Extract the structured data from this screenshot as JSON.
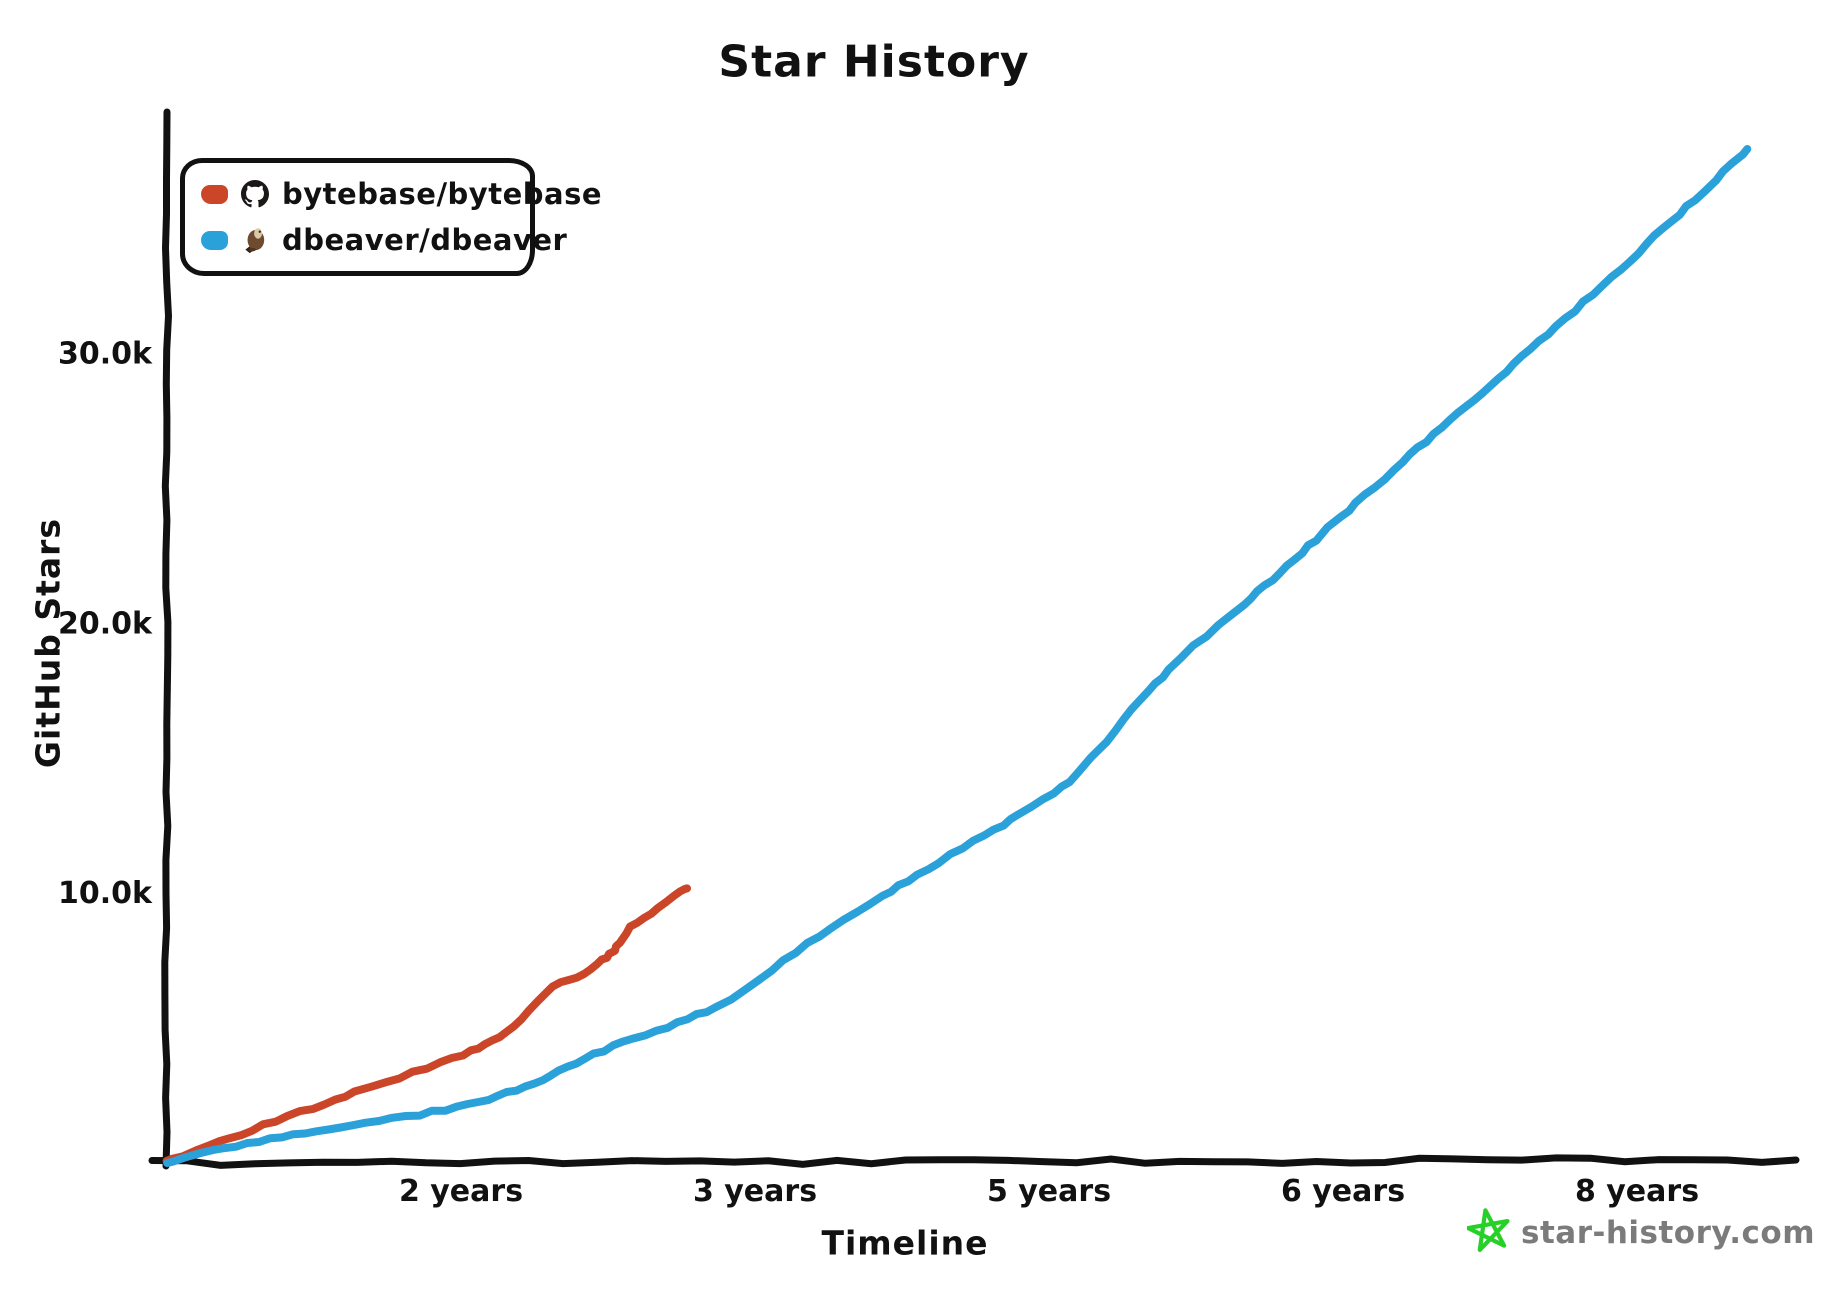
{
  "title": "Star History",
  "legend": {
    "items": [
      {
        "name": "bytebase/bytebase",
        "color": "#cb4529",
        "icon": "github-octocat-avatar"
      },
      {
        "name": "dbeaver/dbeaver",
        "color": "#2ba1d9",
        "icon": "beaver-avatar"
      }
    ]
  },
  "y_axis": {
    "label": "GitHub Stars"
  },
  "x_axis": {
    "label": "Timeline"
  },
  "watermark": {
    "text": "star-history.com",
    "star_color": "#26d026",
    "text_color": "#7b7b7b"
  },
  "chart_data": {
    "type": "line",
    "title": "Star History",
    "xlabel": "Timeline",
    "ylabel": "GitHub Stars",
    "x_unit": "years since repo creation",
    "xlim": [
      0,
      8.85
    ],
    "ylim": [
      0,
      38500
    ],
    "grid": false,
    "legend_position": "top-left",
    "axis_color": "#111111",
    "background": "#ffffff",
    "x_tick_labels": [
      "2 years",
      "3 years",
      "5 years",
      "6 years",
      "8 years"
    ],
    "y_tick_labels": [
      "10.0k",
      "20.0k",
      "30.0k"
    ],
    "y_tick_values": [
      10000,
      20000,
      30000
    ],
    "series": [
      {
        "name": "bytebase/bytebase",
        "color": "#cb4529",
        "points": [
          [
            0,
            0
          ],
          [
            0.45,
            1170
          ],
          [
            1.0,
            2520
          ],
          [
            1.3,
            3230
          ],
          [
            1.6,
            3930
          ],
          [
            1.75,
            4400
          ],
          [
            1.9,
            5100
          ],
          [
            2.08,
            6490
          ],
          [
            2.25,
            6900
          ],
          [
            2.39,
            7600
          ],
          [
            2.44,
            7850
          ],
          [
            2.5,
            8600
          ],
          [
            2.65,
            9300
          ],
          [
            2.83,
            10140
          ]
        ]
      },
      {
        "name": "dbeaver/dbeaver",
        "color": "#2ba1d9",
        "points": [
          [
            0,
            0
          ],
          [
            0.5,
            815
          ],
          [
            1.0,
            1370
          ],
          [
            1.6,
            2000
          ],
          [
            2.0,
            2900
          ],
          [
            2.36,
            4150
          ],
          [
            2.85,
            5260
          ],
          [
            3.2,
            6560
          ],
          [
            3.45,
            7970
          ],
          [
            3.72,
            9080
          ],
          [
            4.0,
            10340
          ],
          [
            4.53,
            12415
          ],
          [
            4.81,
            13600
          ],
          [
            4.97,
            14400
          ],
          [
            5.35,
            17600
          ],
          [
            5.62,
            19350
          ],
          [
            5.89,
            20830
          ],
          [
            6.22,
            22870
          ],
          [
            6.49,
            24530
          ],
          [
            7.0,
            27600
          ],
          [
            7.53,
            30730
          ],
          [
            8.14,
            34540
          ],
          [
            8.6,
            37540
          ]
        ]
      }
    ]
  }
}
